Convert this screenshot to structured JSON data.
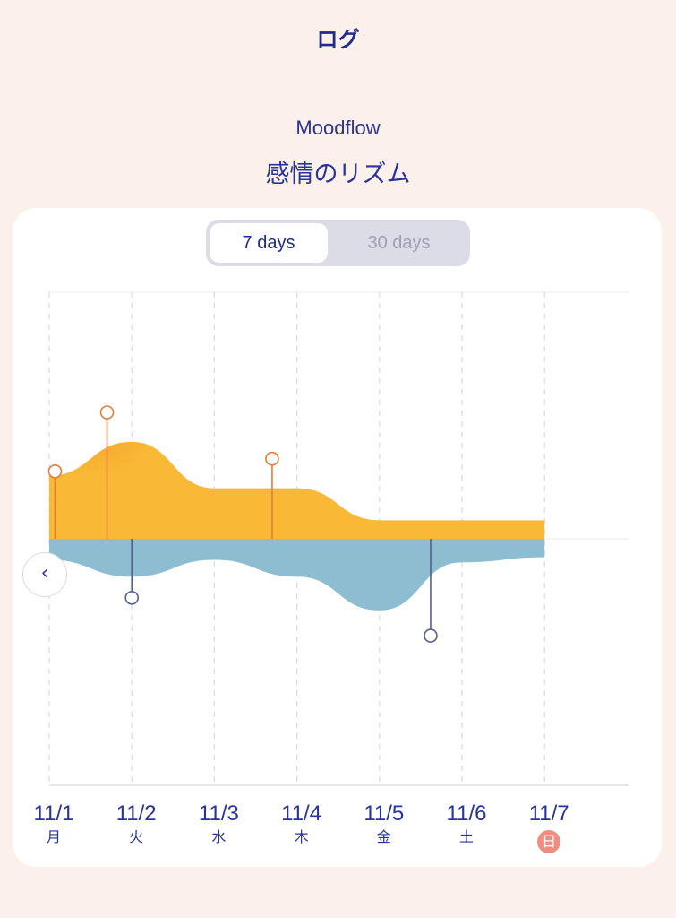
{
  "header": {
    "title": "ログ"
  },
  "main": {
    "app_name": "Moodflow",
    "subtitle": "感情のリズム"
  },
  "range_toggle": {
    "options": [
      "7 days",
      "30 days"
    ],
    "selected": "7 days"
  },
  "nav": {
    "back_icon": "chevron-left-icon",
    "back_label": "‹"
  },
  "colors": {
    "positive": "#f9b934",
    "positive_peak": "#f59a2e",
    "negative": "#8ebdd2",
    "positive_marker": "#e57d3b",
    "negative_marker": "#55608a",
    "sunday_badge": "#ee8e80"
  },
  "chart_data": {
    "type": "area",
    "categories": [
      "11/1",
      "11/2",
      "11/3",
      "11/4",
      "11/5",
      "11/6",
      "11/7"
    ],
    "day_labels": [
      "月",
      "火",
      "水",
      "木",
      "金",
      "土",
      "日"
    ],
    "highlight_day": "日",
    "series": [
      {
        "values": [
          0.75,
          1.15,
          0.6,
          0.6,
          0.22,
          0.22,
          0.22
        ]
      },
      {
        "values": [
          -0.25,
          -0.45,
          -0.25,
          -0.45,
          -0.85,
          -0.28,
          -0.22
        ]
      }
    ],
    "markers": [
      {
        "x": 0.07,
        "value": 0.8,
        "series": "positive"
      },
      {
        "x": 0.7,
        "value": 1.5,
        "series": "positive"
      },
      {
        "x": 2.7,
        "value": 0.95,
        "series": "positive"
      },
      {
        "x": 1.0,
        "value": -0.7,
        "series": "negative"
      },
      {
        "x": 4.62,
        "value": -1.15,
        "series": "negative"
      }
    ],
    "ylim": [
      -2.1,
      2.1
    ],
    "grid": true
  }
}
